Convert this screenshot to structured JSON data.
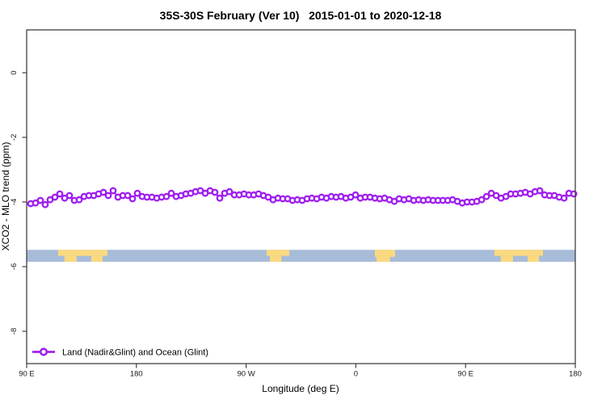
{
  "header": {
    "title": "35S-30S February (Ver 10)   2015-01-01 to 2020-12-18"
  },
  "chart_data": {
    "type": "line",
    "title": "35S-30S February (Ver 10)   2015-01-01 to 2020-12-18",
    "xlabel": "Longitude (deg E)",
    "ylabel": "XCO2 - MLO trend (ppm)",
    "grid": false,
    "legend_position": "bottom-left",
    "x_axis": {
      "range_deg": [
        90,
        540
      ],
      "ticks": [
        {
          "deg": 90,
          "label": "90 E"
        },
        {
          "deg": 180,
          "label": "180"
        },
        {
          "deg": 270,
          "label": "90 W"
        },
        {
          "deg": 360,
          "label": "0"
        },
        {
          "deg": 450,
          "label": "90 E"
        },
        {
          "deg": 540,
          "label": "180"
        }
      ]
    },
    "y_axis": {
      "range": [
        -9.0,
        1.3
      ],
      "ticks": [
        {
          "value": 0,
          "label": "0"
        },
        {
          "value": -2,
          "label": "-2"
        },
        {
          "value": -4,
          "label": "-4"
        },
        {
          "value": -6,
          "label": "-6"
        },
        {
          "value": -8,
          "label": "-8"
        }
      ]
    },
    "series": [
      {
        "name": "Land (Nadir&Glint) and Ocean (Glint)",
        "color": "#A020F0",
        "marker": "open-circle",
        "x_start_deg": 93.3,
        "x_step_deg": 3.977,
        "values": [
          -4.05,
          -4.03,
          -3.95,
          -4.08,
          -3.93,
          -3.85,
          -3.75,
          -3.88,
          -3.8,
          -3.95,
          -3.93,
          -3.83,
          -3.8,
          -3.8,
          -3.75,
          -3.7,
          -3.8,
          -3.65,
          -3.85,
          -3.8,
          -3.8,
          -3.9,
          -3.73,
          -3.83,
          -3.85,
          -3.85,
          -3.88,
          -3.85,
          -3.83,
          -3.73,
          -3.83,
          -3.8,
          -3.75,
          -3.73,
          -3.68,
          -3.65,
          -3.73,
          -3.65,
          -3.7,
          -3.88,
          -3.73,
          -3.68,
          -3.78,
          -3.78,
          -3.75,
          -3.78,
          -3.78,
          -3.75,
          -3.8,
          -3.85,
          -3.93,
          -3.88,
          -3.9,
          -3.9,
          -3.95,
          -3.93,
          -3.95,
          -3.9,
          -3.88,
          -3.9,
          -3.85,
          -3.88,
          -3.83,
          -3.85,
          -3.83,
          -3.88,
          -3.85,
          -3.78,
          -3.88,
          -3.85,
          -3.85,
          -3.88,
          -3.9,
          -3.88,
          -3.93,
          -3.98,
          -3.9,
          -3.93,
          -3.9,
          -3.95,
          -3.93,
          -3.95,
          -3.93,
          -3.95,
          -3.95,
          -3.95,
          -3.95,
          -3.93,
          -3.98,
          -4.03,
          -4.0,
          -4.0,
          -3.98,
          -3.93,
          -3.83,
          -3.73,
          -3.8,
          -3.88,
          -3.83,
          -3.75,
          -3.75,
          -3.73,
          -3.7,
          -3.75,
          -3.68,
          -3.65,
          -3.78,
          -3.8,
          -3.8,
          -3.85,
          -3.88,
          -3.73,
          -3.75
        ]
      }
    ],
    "map_strip": {
      "description": "land-ocean strip for 35S-30S latitude band",
      "ocean_color": "#A7BCD9",
      "land_color": "#FBD97F",
      "y_top_ppm": -5.48,
      "y_bottom_ppm": -5.85,
      "deg_range": [
        90,
        540
      ],
      "land_patches": [
        {
          "name": "australia-north",
          "deg": [
            115.8,
            156.3
          ],
          "v": [
            0,
            0.5
          ]
        },
        {
          "name": "australia-sw",
          "deg": [
            121.0,
            131.0
          ],
          "v": [
            0.5,
            1
          ]
        },
        {
          "name": "australia-se",
          "deg": [
            143.0,
            152.3
          ],
          "v": [
            0.5,
            1
          ]
        },
        {
          "name": "south-america-north",
          "deg": [
            286.8,
            305.5
          ],
          "v": [
            0,
            0.5
          ]
        },
        {
          "name": "south-america-south",
          "deg": [
            289.5,
            299.0
          ],
          "v": [
            0.5,
            1
          ]
        },
        {
          "name": "south-africa-north",
          "deg": [
            375.6,
            392.2
          ],
          "v": [
            0,
            0.6
          ]
        },
        {
          "name": "south-africa-south",
          "deg": [
            377.0,
            388.0
          ],
          "v": [
            0.6,
            1
          ]
        },
        {
          "name": "australia2-north",
          "deg": [
            473.7,
            513.5
          ],
          "v": [
            0,
            0.5
          ]
        },
        {
          "name": "australia2-sw",
          "deg": [
            478.9,
            488.9
          ],
          "v": [
            0.5,
            1
          ]
        },
        {
          "name": "australia2-se",
          "deg": [
            500.9,
            510.2
          ],
          "v": [
            0.5,
            1
          ]
        }
      ]
    },
    "legend": {
      "label": "Land (Nadir&Glint) and Ocean (Glint)"
    }
  }
}
